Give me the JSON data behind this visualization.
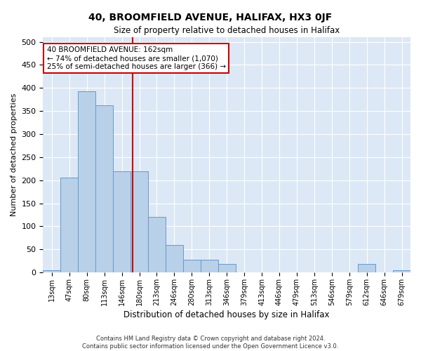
{
  "title": "40, BROOMFIELD AVENUE, HALIFAX, HX3 0JF",
  "subtitle": "Size of property relative to detached houses in Halifax",
  "xlabel": "Distribution of detached houses by size in Halifax",
  "ylabel": "Number of detached properties",
  "categories": [
    "13sqm",
    "47sqm",
    "80sqm",
    "113sqm",
    "146sqm",
    "180sqm",
    "213sqm",
    "246sqm",
    "280sqm",
    "313sqm",
    "346sqm",
    "379sqm",
    "413sqm",
    "446sqm",
    "479sqm",
    "513sqm",
    "546sqm",
    "579sqm",
    "612sqm",
    "646sqm",
    "679sqm"
  ],
  "values": [
    5,
    205,
    393,
    362,
    220,
    220,
    120,
    60,
    28,
    28,
    18,
    0,
    0,
    0,
    0,
    0,
    0,
    0,
    18,
    0,
    5
  ],
  "bar_color": "#b8d0e8",
  "bar_edge_color": "#6699cc",
  "vline_x": 4.62,
  "vline_color": "#cc0000",
  "annotation_text": "40 BROOMFIELD AVENUE: 162sqm\n← 74% of detached houses are smaller (1,070)\n25% of semi-detached houses are larger (366) →",
  "annotation_box_color": "#ffffff",
  "annotation_box_edge_color": "#cc0000",
  "bg_color": "#dce8f5",
  "footer_text": "Contains HM Land Registry data © Crown copyright and database right 2024.\nContains public sector information licensed under the Open Government Licence v3.0.",
  "ylim": [
    0,
    510
  ],
  "yticks": [
    0,
    50,
    100,
    150,
    200,
    250,
    300,
    350,
    400,
    450,
    500
  ]
}
